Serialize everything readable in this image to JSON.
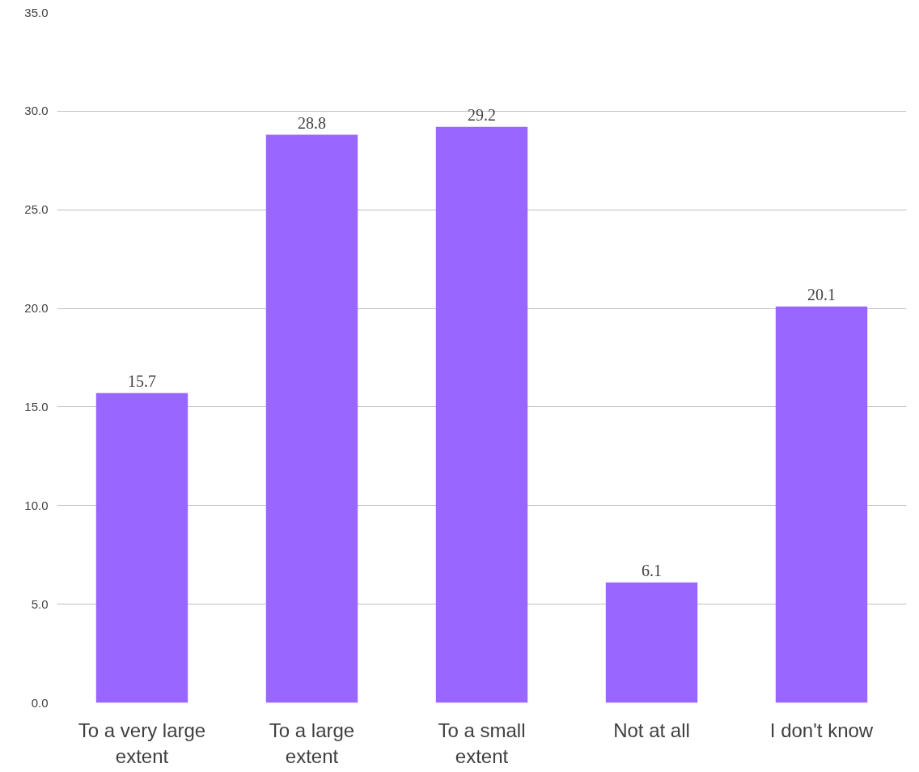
{
  "chart_data": {
    "type": "bar",
    "categories": [
      "To a very large extent",
      "To a large extent",
      "To a small extent",
      "Not at all",
      "I don't know"
    ],
    "values": [
      15.7,
      28.8,
      29.2,
      6.1,
      20.1
    ],
    "color": "#9966ff",
    "ylim": [
      0,
      35
    ],
    "yticks": [
      {
        "value": 0,
        "label": "0.0"
      },
      {
        "value": 5,
        "label": "5.0"
      },
      {
        "value": 10,
        "label": "10.0"
      },
      {
        "value": 15,
        "label": "15.0"
      },
      {
        "value": 20,
        "label": "20.0"
      },
      {
        "value": 25,
        "label": "25.0"
      },
      {
        "value": 30,
        "label": "30.0"
      },
      {
        "value": 35,
        "label": "35.0"
      }
    ],
    "grid": "y",
    "data_labels": true
  }
}
